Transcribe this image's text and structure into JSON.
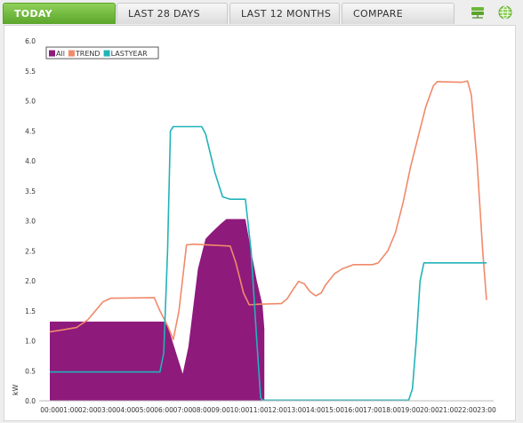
{
  "tabs": [
    {
      "label": "TODAY",
      "active": true
    },
    {
      "label": "LAST 28 DAYS",
      "active": false
    },
    {
      "label": "LAST 12 MONTHS",
      "active": false
    },
    {
      "label": "COMPARE",
      "active": false
    }
  ],
  "icons": {
    "left": "network-grid-icon",
    "right": "globe-icon"
  },
  "colors": {
    "accent": "#6bb83a",
    "all": "#8e1a7c",
    "trend": "#f08a6a",
    "lastyear": "#22b3b8"
  },
  "chart_data": {
    "type": "area",
    "ylabel": "kW",
    "ylim": [
      0,
      6
    ],
    "yticks": [
      "0.0",
      "0.5",
      "1.0",
      "1.5",
      "2.0",
      "2.5",
      "3.0",
      "3.5",
      "4.0",
      "4.5",
      "5.0",
      "5.5",
      "6.0"
    ],
    "xticks": [
      "00:00",
      "01:00",
      "02:00",
      "03:00",
      "04:00",
      "05:00",
      "06:00",
      "07:00",
      "08:00",
      "09:00",
      "10:00",
      "11:00",
      "12:00",
      "13:00",
      "14:00",
      "15:00",
      "16:00",
      "17:00",
      "18:00",
      "19:00",
      "20:00",
      "21:00",
      "22:00",
      "23:00"
    ],
    "legend_position": "top-left",
    "series": [
      {
        "name": "All",
        "style": "area",
        "points": [
          [
            0.0,
            1.32
          ],
          [
            6.0,
            1.32
          ],
          [
            6.2,
            1.25
          ],
          [
            6.5,
            0.95
          ],
          [
            7.0,
            0.45
          ],
          [
            7.3,
            0.9
          ],
          [
            7.8,
            2.2
          ],
          [
            8.2,
            2.7
          ],
          [
            8.5,
            2.8
          ],
          [
            9.0,
            2.95
          ],
          [
            9.3,
            3.03
          ],
          [
            10.3,
            3.03
          ],
          [
            10.6,
            2.5
          ],
          [
            10.9,
            2.0
          ],
          [
            11.2,
            1.6
          ],
          [
            11.3,
            1.2
          ]
        ]
      },
      {
        "name": "TREND",
        "style": "line",
        "points": [
          [
            0.0,
            1.15
          ],
          [
            0.6,
            1.18
          ],
          [
            1.4,
            1.22
          ],
          [
            2.0,
            1.35
          ],
          [
            2.4,
            1.5
          ],
          [
            2.8,
            1.65
          ],
          [
            3.2,
            1.71
          ],
          [
            5.5,
            1.72
          ],
          [
            5.8,
            1.5
          ],
          [
            6.2,
            1.25
          ],
          [
            6.5,
            1.02
          ],
          [
            6.8,
            1.5
          ],
          [
            7.2,
            2.6
          ],
          [
            7.6,
            2.61
          ],
          [
            9.5,
            2.58
          ],
          [
            9.8,
            2.3
          ],
          [
            10.2,
            1.8
          ],
          [
            10.5,
            1.6
          ],
          [
            11.0,
            1.61
          ],
          [
            12.2,
            1.62
          ],
          [
            12.5,
            1.7
          ],
          [
            12.8,
            1.85
          ],
          [
            13.1,
            1.99
          ],
          [
            13.4,
            1.95
          ],
          [
            13.7,
            1.82
          ],
          [
            14.0,
            1.75
          ],
          [
            14.3,
            1.8
          ],
          [
            14.5,
            1.92
          ],
          [
            15.0,
            2.12
          ],
          [
            15.4,
            2.2
          ],
          [
            16.0,
            2.27
          ],
          [
            17.0,
            2.27
          ],
          [
            17.3,
            2.3
          ],
          [
            17.8,
            2.5
          ],
          [
            18.2,
            2.8
          ],
          [
            18.6,
            3.3
          ],
          [
            19.0,
            3.9
          ],
          [
            19.4,
            4.4
          ],
          [
            19.8,
            4.9
          ],
          [
            20.2,
            5.25
          ],
          [
            20.4,
            5.32
          ],
          [
            21.7,
            5.31
          ],
          [
            22.0,
            5.33
          ],
          [
            22.2,
            5.1
          ],
          [
            22.5,
            4.0
          ],
          [
            22.8,
            2.5
          ],
          [
            23.0,
            1.68
          ]
        ]
      },
      {
        "name": "LASTYEAR",
        "style": "line",
        "points": [
          [
            0.0,
            0.48
          ],
          [
            5.8,
            0.48
          ],
          [
            6.0,
            0.8
          ],
          [
            6.2,
            2.5
          ],
          [
            6.35,
            4.5
          ],
          [
            6.5,
            4.57
          ],
          [
            8.0,
            4.57
          ],
          [
            8.2,
            4.45
          ],
          [
            8.7,
            3.8
          ],
          [
            9.1,
            3.4
          ],
          [
            9.5,
            3.36
          ],
          [
            10.3,
            3.36
          ],
          [
            10.6,
            2.5
          ],
          [
            10.9,
            1.0
          ],
          [
            11.1,
            0.05
          ],
          [
            11.2,
            0.01
          ],
          [
            18.9,
            0.01
          ],
          [
            19.1,
            0.2
          ],
          [
            19.3,
            1.0
          ],
          [
            19.5,
            2.0
          ],
          [
            19.7,
            2.3
          ],
          [
            23.0,
            2.3
          ]
        ]
      }
    ]
  }
}
